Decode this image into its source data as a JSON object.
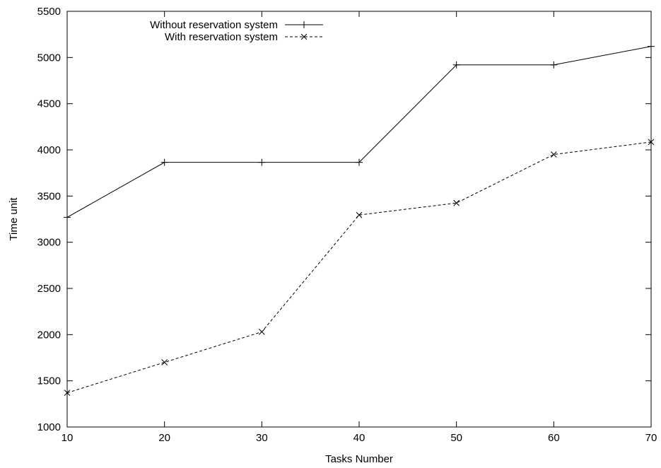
{
  "chart_data": {
    "type": "line",
    "xlabel": "Tasks Number",
    "ylabel": "Time unit",
    "xlim": [
      10,
      70
    ],
    "ylim": [
      1000,
      5500
    ],
    "xticks": [
      10,
      20,
      30,
      40,
      50,
      60,
      70
    ],
    "yticks": [
      1000,
      1500,
      2000,
      2500,
      3000,
      3500,
      4000,
      4500,
      5000,
      5500
    ],
    "grid": false,
    "legend": "top-left",
    "x": [
      10,
      20,
      30,
      40,
      50,
      60,
      70
    ],
    "series": [
      {
        "name": "Without reservation system",
        "values": [
          3270,
          3865,
          3865,
          3865,
          4920,
          4920,
          5120
        ],
        "line": "solid",
        "marker": "plus",
        "color": "#000000"
      },
      {
        "name": "With reservation system",
        "values": [
          1370,
          1700,
          2030,
          3295,
          3425,
          3950,
          4085
        ],
        "line": "dashed",
        "marker": "cross",
        "color": "#000000"
      }
    ]
  }
}
